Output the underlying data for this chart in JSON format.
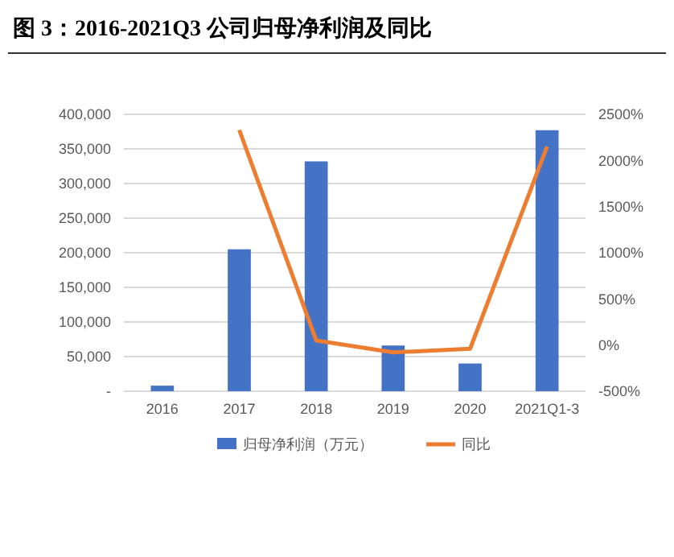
{
  "chart_data": {
    "type": "bar",
    "title": "图 3：2016-2021Q3 公司归母净利润及同比",
    "categories": [
      "2016",
      "2017",
      "2018",
      "2019",
      "2020",
      "2021Q1-3"
    ],
    "series": [
      {
        "name": "归母净利润（万元）",
        "color": "#4472c4",
        "values": [
          8000,
          205000,
          332000,
          66000,
          40000,
          377000
        ]
      },
      {
        "name": "同比",
        "type": "line",
        "axis": "y2",
        "color": "#ed7d31",
        "values": [
          null,
          2330,
          50,
          -80,
          -40,
          2150
        ]
      }
    ],
    "ylim": [
      0,
      400000
    ],
    "yticks": [
      {
        "value": 0,
        "label": "-"
      },
      {
        "value": 50000,
        "label": "50,000"
      },
      {
        "value": 100000,
        "label": "100,000"
      },
      {
        "value": 150000,
        "label": "150,000"
      },
      {
        "value": 200000,
        "label": "200,000"
      },
      {
        "value": 250000,
        "label": "250,000"
      },
      {
        "value": 300000,
        "label": "300,000"
      },
      {
        "value": 350000,
        "label": "350,000"
      },
      {
        "value": 400000,
        "label": "400,000"
      }
    ],
    "y2lim": [
      -500,
      2500
    ],
    "y2ticks": [
      {
        "value": -500,
        "label": "-500%"
      },
      {
        "value": 0,
        "label": "0%"
      },
      {
        "value": 500,
        "label": "500%"
      },
      {
        "value": 1000,
        "label": "1000%"
      },
      {
        "value": 1500,
        "label": "1500%"
      },
      {
        "value": 2000,
        "label": "2000%"
      },
      {
        "value": 2500,
        "label": "2500%"
      }
    ],
    "grid": "y",
    "legend": "bottom",
    "marker": "none",
    "line_style": "solid"
  }
}
